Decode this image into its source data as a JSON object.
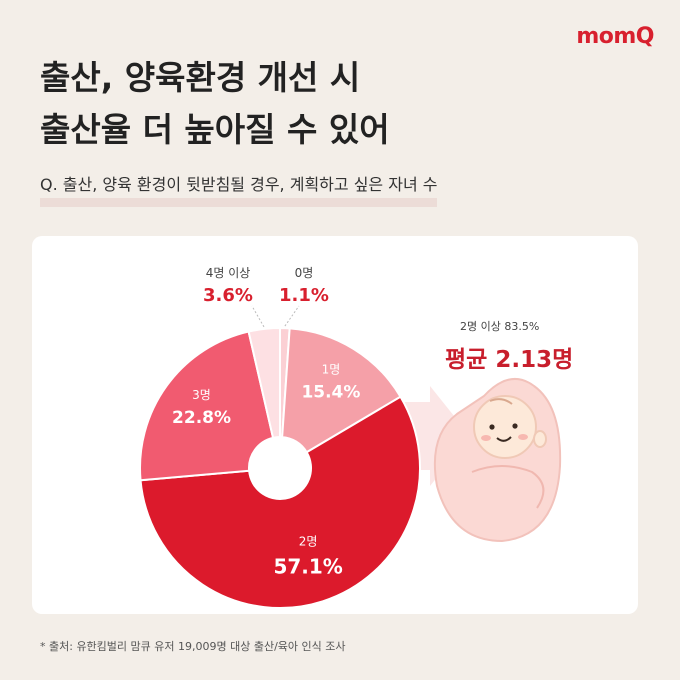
{
  "brand": {
    "logo": "momQ"
  },
  "title": {
    "line1": "출산, 양육환경 개선 시",
    "line2": "출산율 더 높아질 수 있어"
  },
  "subtitle": "Q. 출산, 양육 환경이 뒷받침될 경우, 계획하고 싶은 자녀 수",
  "summary": {
    "caption": "2명 이상 83.5%",
    "average": "평균 2.13명"
  },
  "source": "* 출처: 유한킴벌리 맘큐 유저 19,009명 대상 출산/육아 인식 조사",
  "colors": {
    "accent": "#d8202e",
    "background": "#f3eee8",
    "card": "#ffffff"
  },
  "illustration": "baby-icon",
  "chart_data": {
    "type": "pie",
    "hole": "donut",
    "categories": [
      "0명",
      "1명",
      "2명",
      "3명",
      "4명 이상"
    ],
    "values": [
      1.1,
      15.4,
      57.1,
      22.8,
      3.6
    ],
    "value_labels": [
      "1.1%",
      "15.4%",
      "57.1%",
      "22.8%",
      "3.6%"
    ],
    "colors": [
      "#fbd0d4",
      "#f5a0a8",
      "#dc1a2c",
      "#f15b70",
      "#fde0e3"
    ],
    "title": "",
    "xlabel": "",
    "ylabel": ""
  }
}
